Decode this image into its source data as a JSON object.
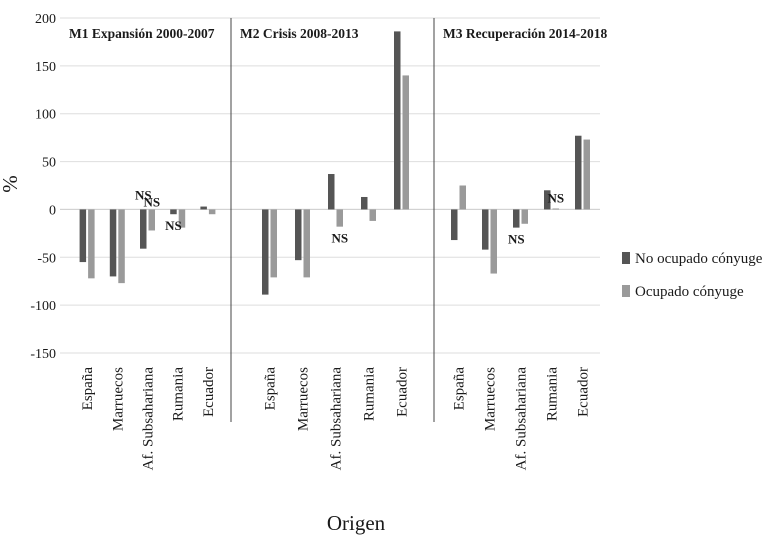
{
  "chart_data": {
    "type": "bar",
    "ylabel": "%",
    "xlabel": "Origen",
    "ylim": [
      -150,
      200
    ],
    "yticks": [
      -150,
      -100,
      -50,
      0,
      50,
      100,
      150,
      200
    ],
    "grid": true,
    "legend_position": "right",
    "colors": {
      "No ocupado cónyuge": "#555555",
      "Ocupado cónyuge": "#9a9a9a"
    },
    "panels": [
      {
        "title": "M1 Expansión 2000-2007",
        "categories": [
          "España",
          "Marruecos",
          "Af. Subsahariana",
          "Rumania",
          "Ecuador"
        ],
        "series": [
          {
            "name": "No ocupado cónyuge",
            "values": [
              -55,
              -70,
              -41,
              -5,
              3
            ]
          },
          {
            "name": "Ocupado cónyuge",
            "values": [
              -72,
              -77,
              -22,
              -19,
              -5
            ]
          }
        ],
        "annotations": [
          {
            "category": "Af. Subsahariana",
            "series": "No ocupado cónyuge",
            "text": "NS"
          },
          {
            "category": "Af. Subsahariana",
            "series": "Ocupado cónyuge",
            "text": "NS"
          },
          {
            "category": "Rumania",
            "series": "No ocupado cónyuge",
            "text": "NS"
          }
        ]
      },
      {
        "title": "M2 Crisis 2008-2013",
        "categories": [
          "España",
          "Marruecos",
          "Af. Subsahariana",
          "Rumania",
          "Ecuador"
        ],
        "series": [
          {
            "name": "No ocupado cónyuge",
            "values": [
              -89,
              -53,
              37,
              13,
              186
            ]
          },
          {
            "name": "Ocupado cónyuge",
            "values": [
              -71,
              -71,
              -18,
              -12,
              140
            ]
          }
        ],
        "annotations": [
          {
            "category": "Af. Subsahariana",
            "series": "Ocupado cónyuge",
            "text": "NS"
          }
        ]
      },
      {
        "title": "M3 Recuperación 2014-2018",
        "categories": [
          "España",
          "Marruecos",
          "Af. Subsahariana",
          "Rumania",
          "Ecuador"
        ],
        "series": [
          {
            "name": "No ocupado cónyuge",
            "values": [
              -32,
              -42,
              -19,
              20,
              77
            ]
          },
          {
            "name": "Ocupado cónyuge",
            "values": [
              25,
              -67,
              -15,
              1,
              73
            ]
          }
        ],
        "annotations": [
          {
            "category": "Af. Subsahariana",
            "series": "No ocupado cónyuge",
            "text": "NS"
          },
          {
            "category": "Rumania",
            "series": "Ocupado cónyuge",
            "text": "NS"
          }
        ]
      }
    ]
  }
}
